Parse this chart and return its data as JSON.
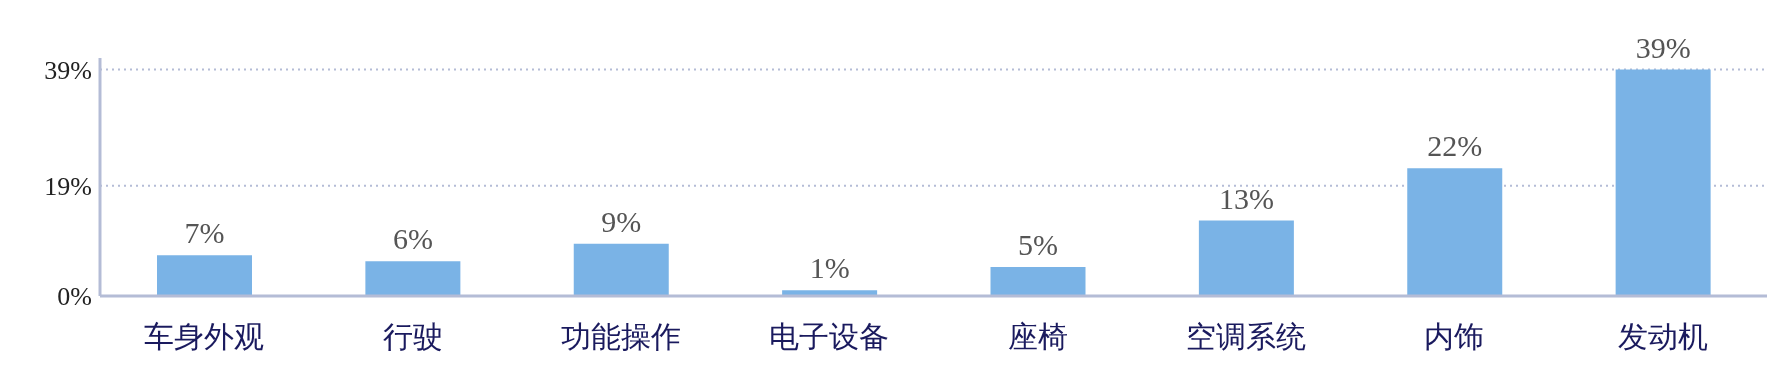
{
  "chart_data": {
    "type": "bar",
    "categories": [
      "车身外观",
      "行驶",
      "功能操作",
      "电子设备",
      "座椅",
      "空调系统",
      "内饰",
      "发动机"
    ],
    "values": [
      7,
      6,
      9,
      1,
      5,
      13,
      22,
      39
    ],
    "value_labels": [
      "7%",
      "6%",
      "9%",
      "1%",
      "5%",
      "13%",
      "22%",
      "39%"
    ],
    "color": "#7ab3e6",
    "ylim": [
      0,
      41
    ],
    "yticks": [
      {
        "value": 0,
        "label": "0%"
      },
      {
        "value": 19,
        "label": "19%"
      },
      {
        "value": 39,
        "label": "39%"
      }
    ],
    "grid": "y"
  }
}
